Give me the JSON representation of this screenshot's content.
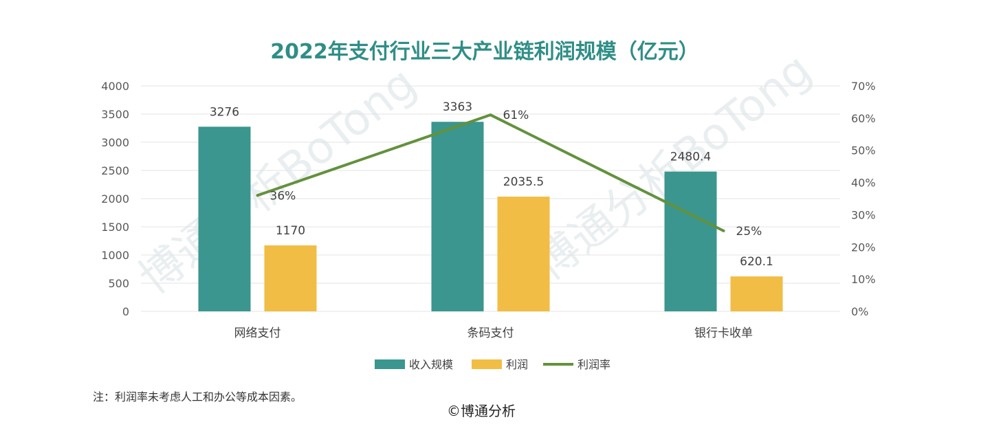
{
  "colors": {
    "revenue": "#3a968e",
    "profit": "#f1bd45",
    "rate": "#63913d",
    "title": "#2f8e86",
    "grid": "#e3e3e3"
  },
  "watermark": {
    "text_1": "博通分析BoTong",
    "text_2": "博通分析BoTong"
  },
  "footer": {
    "note": "注：利润率未考虑人工和办公等成本因素。",
    "copyright": "©博通分析"
  },
  "chart_data": {
    "type": "bar",
    "title": "2022年支付行业三大产业链利润规模（亿元）",
    "categories": [
      "网络支付",
      "条码支付",
      "银行卡收单"
    ],
    "series": [
      {
        "name": "收入规模",
        "type": "bar",
        "axis": "left",
        "values": [
          3276,
          3363,
          2480.4
        ],
        "labels": [
          "3276",
          "3363",
          "2480.4"
        ]
      },
      {
        "name": "利润",
        "type": "bar",
        "axis": "left",
        "values": [
          1170,
          2035.5,
          620.1
        ],
        "labels": [
          "1170",
          "2035.5",
          "620.1"
        ]
      },
      {
        "name": "利润率",
        "type": "line",
        "axis": "right",
        "values": [
          36,
          61,
          25
        ],
        "labels": [
          "36%",
          "61%",
          "25%"
        ]
      }
    ],
    "ylim_left": [
      0,
      4000
    ],
    "yticks_left": [
      "0",
      "500",
      "1000",
      "1500",
      "2000",
      "2500",
      "3000",
      "3500",
      "4000"
    ],
    "ylim_right": [
      0,
      70
    ],
    "yticks_right": [
      "0%",
      "10%",
      "20%",
      "30%",
      "40%",
      "50%",
      "60%",
      "70%"
    ],
    "grid": true,
    "legend": "bottom"
  }
}
